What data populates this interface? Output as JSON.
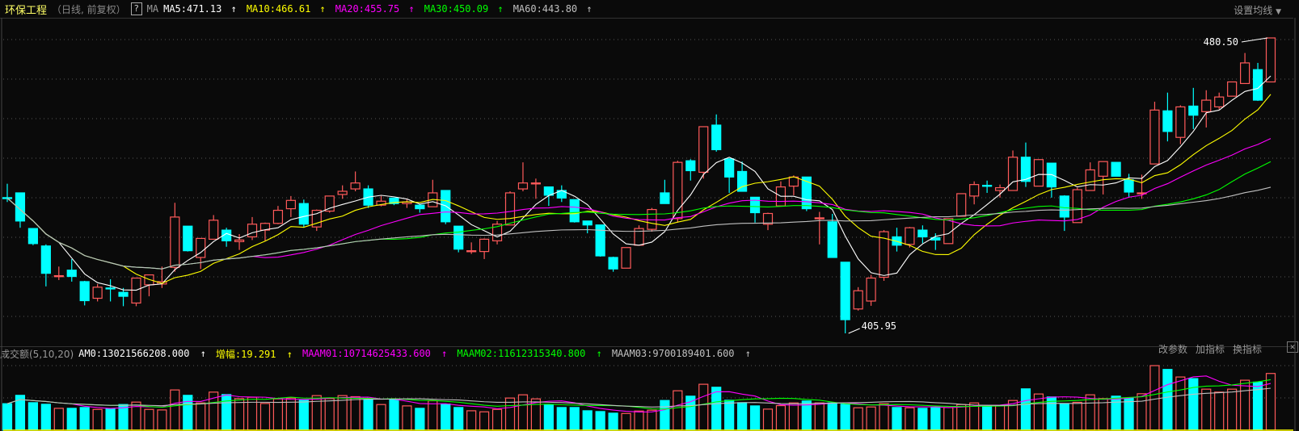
{
  "header": {
    "stock_name": "环保工程",
    "period": "（日线, 前复权）",
    "help_icon": "question-mark-icon",
    "indicator": "MA",
    "ma": [
      {
        "label": "MA5:471.13",
        "color": "#ffffff"
      },
      {
        "label": "MA10:466.61",
        "color": "#ffff00"
      },
      {
        "label": "MA20:455.75",
        "color": "#ff00ff"
      },
      {
        "label": "MA30:450.09",
        "color": "#00ff00"
      },
      {
        "label": "MA60:443.80",
        "color": "#c0c0c0"
      }
    ],
    "arrow": "↑",
    "settings_label": "设置均线",
    "settings_icon": "caret-down-icon"
  },
  "volume_header": {
    "title": "成交额(5,10,20)",
    "items": [
      {
        "label": "AM0:13021566208.000",
        "color": "#ffffff"
      },
      {
        "label": "增幅:19.291",
        "color": "#ffff00"
      },
      {
        "label": "MAAM01:10714625433.600",
        "color": "#ff00ff"
      },
      {
        "label": "MAAM02:11612315340.800",
        "color": "#00ff00"
      },
      {
        "label": "MAAM03:9700189401.600",
        "color": "#c0c0c0"
      }
    ],
    "tools": [
      "改参数",
      "加指标",
      "换指标"
    ],
    "close_icon": "close-icon"
  },
  "chart_data": {
    "type": "candlestick",
    "colors": {
      "up": "#ff5a5a",
      "down": "#00ffff",
      "background": "#0a0a0a",
      "grid": "#555555"
    },
    "ma_periods": [
      5,
      10,
      20,
      30,
      60
    ],
    "ma_colors": [
      "#ffffff",
      "#ffff00",
      "#ff00ff",
      "#00ff00",
      "#c0c0c0"
    ],
    "grid": true,
    "price_range": [
      405.95,
      480.5
    ],
    "high_label": "480.50",
    "low_label": "405.95",
    "candles_ohlc": [
      [
        440.2,
        443.7,
        439.1,
        440.1
      ],
      [
        441.4,
        441.4,
        432.6,
        434.3
      ],
      [
        432.4,
        432.4,
        428.2,
        428.6
      ],
      [
        428.0,
        428.4,
        417.8,
        421.1
      ],
      [
        420.4,
        422.8,
        419.4,
        420.5
      ],
      [
        421.9,
        424.7,
        419.0,
        420.3
      ],
      [
        419.0,
        419.2,
        413.0,
        414.2
      ],
      [
        414.8,
        418.4,
        414.0,
        417.6
      ],
      [
        417.4,
        419.6,
        414.0,
        417.2
      ],
      [
        416.3,
        417.4,
        412.8,
        415.3
      ],
      [
        413.6,
        419.9,
        412.8,
        419.9
      ],
      [
        418.2,
        420.7,
        415.3,
        420.7
      ],
      [
        418.4,
        422.8,
        417.4,
        419.0
      ],
      [
        422.6,
        438.9,
        421.5,
        435.3
      ],
      [
        433.0,
        433.0,
        426.6,
        426.8
      ],
      [
        425.1,
        429.9,
        422.2,
        429.9
      ],
      [
        429.7,
        435.8,
        429.7,
        434.5
      ],
      [
        432.0,
        432.6,
        427.8,
        429.3
      ],
      [
        429.1,
        431.0,
        427.0,
        429.5
      ],
      [
        430.3,
        435.3,
        429.5,
        433.5
      ],
      [
        432.0,
        433.9,
        429.3,
        433.7
      ],
      [
        433.7,
        438.1,
        433.5,
        437.0
      ],
      [
        437.4,
        440.6,
        435.3,
        439.5
      ],
      [
        438.7,
        439.7,
        432.6,
        433.5
      ],
      [
        432.8,
        437.2,
        431.8,
        437.0
      ],
      [
        436.8,
        440.6,
        436.4,
        440.6
      ],
      [
        441.0,
        443.3,
        439.9,
        441.8
      ],
      [
        442.4,
        446.8,
        441.8,
        443.9
      ],
      [
        442.4,
        443.3,
        437.6,
        438.3
      ],
      [
        438.3,
        440.6,
        438.0,
        439.3
      ],
      [
        440.1,
        440.1,
        438.3,
        438.7
      ],
      [
        438.7,
        439.9,
        437.6,
        439.1
      ],
      [
        438.3,
        438.5,
        436.4,
        437.4
      ],
      [
        437.9,
        444.7,
        437.9,
        441.4
      ],
      [
        442.0,
        442.0,
        433.5,
        434.1
      ],
      [
        433.0,
        433.0,
        426.4,
        427.2
      ],
      [
        426.6,
        428.9,
        426.0,
        426.8
      ],
      [
        426.6,
        429.9,
        424.7,
        429.7
      ],
      [
        429.3,
        434.3,
        428.4,
        433.5
      ],
      [
        433.3,
        441.8,
        433.3,
        441.4
      ],
      [
        442.4,
        449.1,
        441.8,
        443.9
      ],
      [
        443.9,
        445.0,
        439.9,
        443.9
      ],
      [
        442.9,
        442.9,
        438.1,
        440.8
      ],
      [
        442.0,
        443.3,
        439.1,
        440.1
      ],
      [
        439.7,
        439.7,
        433.9,
        434.1
      ],
      [
        434.3,
        434.3,
        431.2,
        433.3
      ],
      [
        433.3,
        433.3,
        425.3,
        425.5
      ],
      [
        425.1,
        425.3,
        421.5,
        422.2
      ],
      [
        422.4,
        427.6,
        422.4,
        427.6
      ],
      [
        428.2,
        433.2,
        428.2,
        432.4
      ],
      [
        432.2,
        437.6,
        431.6,
        437.2
      ],
      [
        441.4,
        444.7,
        438.7,
        438.7
      ],
      [
        434.9,
        449.5,
        433.9,
        449.1
      ],
      [
        449.5,
        449.9,
        444.5,
        447.0
      ],
      [
        446.6,
        458.1,
        445.0,
        458.1
      ],
      [
        458.5,
        461.2,
        451.8,
        452.3
      ],
      [
        450.0,
        450.0,
        441.4,
        445.4
      ],
      [
        446.8,
        449.3,
        441.8,
        441.8
      ],
      [
        440.3,
        440.3,
        433.9,
        436.4
      ],
      [
        433.5,
        436.4,
        432.0,
        436.2
      ],
      [
        438.1,
        444.3,
        438.1,
        442.9
      ],
      [
        443.1,
        445.8,
        440.8,
        445.4
      ],
      [
        445.4,
        445.4,
        436.8,
        437.4
      ],
      [
        435.1,
        436.6,
        428.4,
        435.1
      ],
      [
        434.1,
        436.1,
        425.1,
        425.1
      ],
      [
        423.9,
        423.9,
        405.95,
        409.4
      ],
      [
        412.1,
        417.6,
        411.7,
        416.7
      ],
      [
        414.1,
        420.7,
        412.9,
        419.9
      ],
      [
        420.1,
        432.0,
        419.2,
        431.6
      ],
      [
        430.3,
        432.6,
        426.6,
        428.2
      ],
      [
        428.4,
        432.8,
        427.6,
        432.6
      ],
      [
        432.0,
        433.2,
        428.7,
        430.3
      ],
      [
        430.1,
        431.2,
        427.0,
        429.5
      ],
      [
        428.6,
        434.9,
        428.6,
        434.9
      ],
      [
        435.5,
        441.2,
        435.5,
        441.2
      ],
      [
        440.6,
        444.3,
        438.5,
        443.5
      ],
      [
        443.3,
        444.5,
        441.4,
        443.1
      ],
      [
        442.0,
        443.5,
        440.2,
        442.7
      ],
      [
        442.0,
        452.1,
        442.0,
        450.4
      ],
      [
        450.4,
        454.1,
        442.9,
        444.3
      ],
      [
        443.1,
        449.8,
        443.1,
        449.8
      ],
      [
        448.9,
        448.9,
        440.2,
        442.9
      ],
      [
        440.6,
        440.8,
        431.8,
        435.3
      ],
      [
        433.9,
        442.7,
        433.9,
        442.2
      ],
      [
        442.0,
        449.1,
        442.0,
        447.2
      ],
      [
        445.6,
        449.3,
        441.0,
        449.3
      ],
      [
        449.1,
        449.1,
        445.6,
        445.6
      ],
      [
        444.7,
        446.2,
        440.4,
        441.6
      ],
      [
        441.2,
        446.0,
        439.9,
        441.4
      ],
      [
        448.7,
        464.4,
        448.7,
        462.3
      ],
      [
        462.1,
        466.7,
        454.4,
        456.9
      ],
      [
        455.4,
        463.5,
        453.7,
        463.1
      ],
      [
        463.3,
        467.9,
        457.5,
        461.0
      ],
      [
        461.9,
        467.3,
        457.9,
        464.8
      ],
      [
        463.1,
        466.7,
        462.5,
        465.6
      ],
      [
        465.8,
        469.4,
        465.8,
        469.4
      ],
      [
        469.0,
        476.7,
        469.0,
        474.2
      ],
      [
        472.5,
        474.2,
        464.6,
        464.8
      ],
      [
        469.4,
        480.5,
        469.4,
        480.5
      ]
    ],
    "amount": [
      6080000000.0,
      8000000000.0,
      6320000000.0,
      5950000000.0,
      5020000000.0,
      5020000000.0,
      5210000000.0,
      4770000000.0,
      4900000000.0,
      5890000000.0,
      6450000000.0,
      4770000000.0,
      4650000000.0,
      9240000000.0,
      8000000000.0,
      6260000000.0,
      8740000000.0,
      8180000000.0,
      7250000000.0,
      7560000000.0,
      6140000000.0,
      7190000000.0,
      7380000000.0,
      6940000000.0,
      7940000000.0,
      7250000000.0,
      7940000000.0,
      7690000000.0,
      7070000000.0,
      5890000000.0,
      7070000000.0,
      5580000000.0,
      5020000000.0,
      6760000000.0,
      6010000000.0,
      5210000000.0,
      4460000000.0,
      4220000000.0,
      4770000000.0,
      7380000000.0,
      8120000000.0,
      7190000000.0,
      5770000000.0,
      5210000000.0,
      5210000000.0,
      4460000000.0,
      4280000000.0,
      3910000000.0,
      3840000000.0,
      4400000000.0,
      4590000000.0,
      6820000000.0,
      9050000000.0,
      7810000000.0,
      10540000000.0,
      9860000000.0,
      6880000000.0,
      6320000000.0,
      5580000000.0,
      4840000000.0,
      5640000000.0,
      6260000000.0,
      6700000000.0,
      6260000000.0,
      6260000000.0,
      5950000000.0,
      5150000000.0,
      5330000000.0,
      6080000000.0,
      5210000000.0,
      5150000000.0,
      5020000000.0,
      5330000000.0,
      5210000000.0,
      5890000000.0,
      6260000000.0,
      5700000000.0,
      5700000000.0,
      6820000000.0,
      9490000000.0,
      8310000000.0,
      7630000000.0,
      6080000000.0,
      6390000000.0,
      8120000000.0,
      7250000000.0,
      7810000000.0,
      7320000000.0,
      8370000000.0,
      14820000000.0,
      13950000000.0,
      12210000000.0,
      11840000000.0,
      9420000000.0,
      8740000000.0,
      9420000000.0,
      11470000000.0,
      11040000000.0,
      13020000000.0
    ],
    "amount_ma_periods": [
      5,
      10,
      20
    ],
    "amount_ma_colors": [
      "#ff00ff",
      "#00ff00",
      "#c0c0c0"
    ]
  }
}
